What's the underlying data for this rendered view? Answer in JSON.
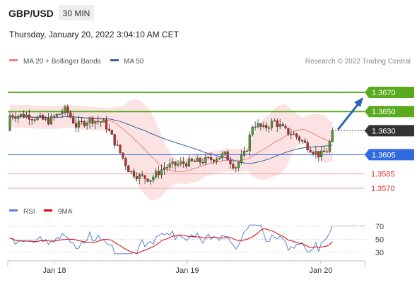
{
  "header": {
    "symbol": "GBP/USD",
    "timeframe": "30 MIN",
    "datetime": "Thursday, January 20, 2022 3:04:10 AM CET"
  },
  "legend": {
    "ma20": "MA 20 + Bollinger Bands",
    "ma50": "MA 50",
    "ma20_color": "#f08080",
    "ma50_color": "#3a5f9f"
  },
  "credit": "Research © 2022 Trading Central",
  "rsi_legend": {
    "rsi": "RSI",
    "ma9": "9MA",
    "rsi_color": "#5a7fd6",
    "ma9_color": "#e00000"
  },
  "chart_data": {
    "type": "candlestick",
    "price_range": [
      1.3555,
      1.3685
    ],
    "levels": [
      {
        "value": 1.367,
        "label": "1.3670",
        "role": "resistance",
        "color": "#5aaa1e"
      },
      {
        "value": 1.365,
        "label": "1.3650",
        "role": "resistance",
        "color": "#5aaa1e"
      },
      {
        "value": 1.363,
        "label": "1.3630",
        "role": "current",
        "color": "#333333"
      },
      {
        "value": 1.3605,
        "label": "1.3605",
        "role": "pivot",
        "color": "#2f6ae0"
      },
      {
        "value": 1.3585,
        "label": "1.3585",
        "role": "support",
        "color": "#e03030"
      },
      {
        "value": 1.357,
        "label": "1.3570",
        "role": "support",
        "color": "#e03030"
      }
    ],
    "x_ticks": [
      "Jan 18",
      "Jan 19",
      "Jan 20"
    ],
    "rsi_ticks": [
      70,
      50,
      30
    ],
    "rsi_range": [
      20,
      80
    ],
    "candle_colors": {
      "up": "#4a9a2a",
      "down": "#c02828"
    }
  }
}
